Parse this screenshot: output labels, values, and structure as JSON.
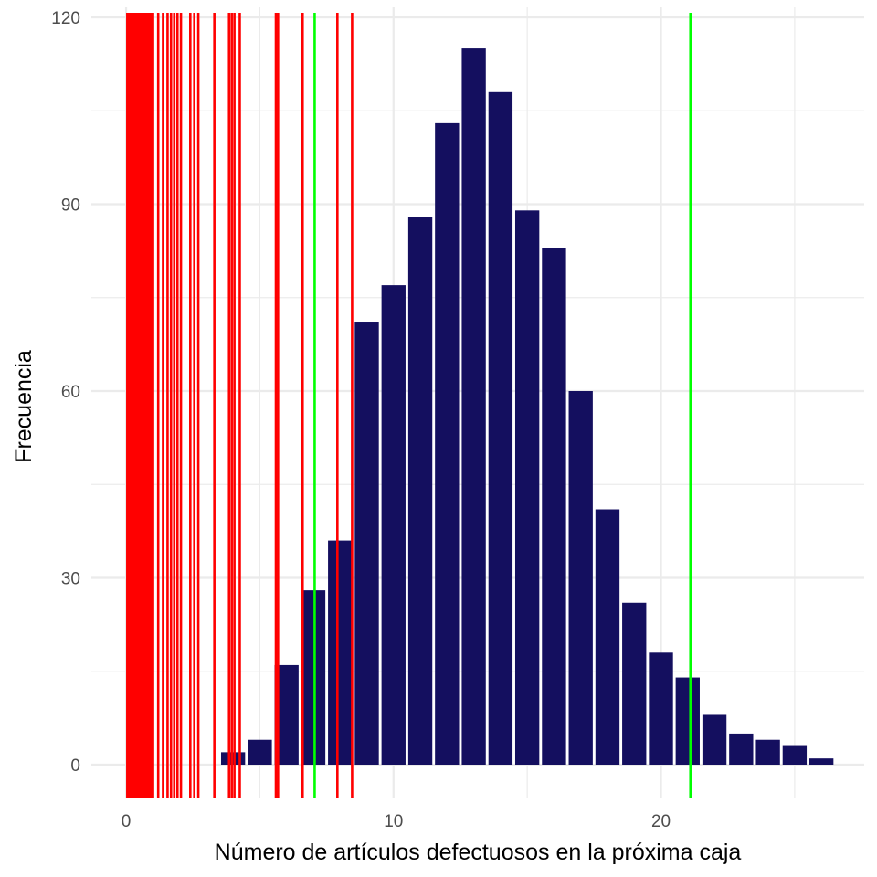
{
  "chart_data": {
    "type": "bar",
    "title": "",
    "xlabel": "Número de artículos defectuosos en la próxima caja",
    "ylabel": "Frecuencia",
    "xlim": [
      -1.3,
      27.6
    ],
    "ylim": [
      -5.5,
      120
    ],
    "x_ticks": [
      0,
      10,
      20
    ],
    "y_ticks": [
      0,
      30,
      60,
      90,
      120
    ],
    "grid": true,
    "bars": [
      {
        "x": 4,
        "y": 2
      },
      {
        "x": 5,
        "y": 4
      },
      {
        "x": 6,
        "y": 16
      },
      {
        "x": 7,
        "y": 28
      },
      {
        "x": 8,
        "y": 36
      },
      {
        "x": 9,
        "y": 71
      },
      {
        "x": 10,
        "y": 77
      },
      {
        "x": 11,
        "y": 88
      },
      {
        "x": 12,
        "y": 103
      },
      {
        "x": 13,
        "y": 115
      },
      {
        "x": 14,
        "y": 108
      },
      {
        "x": 15,
        "y": 89
      },
      {
        "x": 16,
        "y": 83
      },
      {
        "x": 17,
        "y": 60
      },
      {
        "x": 18,
        "y": 41
      },
      {
        "x": 19,
        "y": 26
      },
      {
        "x": 20,
        "y": 18
      },
      {
        "x": 21,
        "y": 14
      },
      {
        "x": 22,
        "y": 8
      },
      {
        "x": 23,
        "y": 5
      },
      {
        "x": 24,
        "y": 4
      },
      {
        "x": 25,
        "y": 3
      },
      {
        "x": 26,
        "y": 1
      }
    ],
    "red_lines_x": [
      0.05,
      0.12,
      0.2,
      0.28,
      0.36,
      0.44,
      0.52,
      0.6,
      0.68,
      0.76,
      0.84,
      0.92,
      1.0,
      1.2,
      1.38,
      1.55,
      1.68,
      1.8,
      1.92,
      2.05,
      2.4,
      2.55,
      2.7,
      3.3,
      3.85,
      3.95,
      4.05,
      4.25,
      5.6,
      5.68,
      6.6,
      7.9,
      8.45
    ],
    "green_lines_x": [
      7.05,
      21.1
    ],
    "colors": {
      "bar": "#140f5f",
      "red_line": "#ff0000",
      "green_line": "#00ff00",
      "grid": "#ebebeb",
      "background": "#ffffff"
    }
  }
}
